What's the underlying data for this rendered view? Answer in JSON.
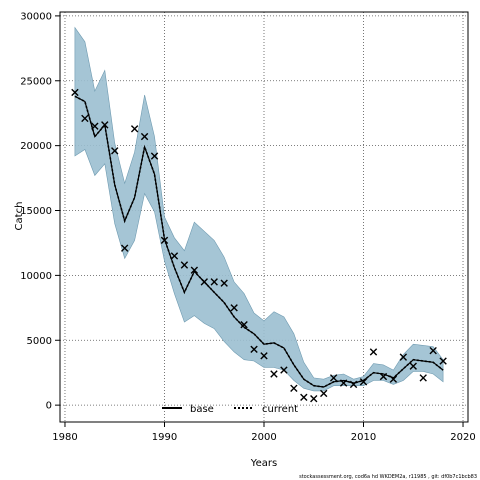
{
  "chart_data": {
    "type": "line",
    "xlabel": "Years",
    "ylabel": "Catch",
    "xlim": [
      1979.5,
      2020.5
    ],
    "ylim": [
      -1300,
      30300
    ],
    "xticks": [
      1980,
      1990,
      2000,
      2010,
      2020
    ],
    "yticks": [
      0,
      5000,
      10000,
      15000,
      20000,
      25000,
      30000
    ],
    "grid": true,
    "legend_position": "bottom-center",
    "years": [
      1981,
      1982,
      1983,
      1984,
      1985,
      1986,
      1987,
      1988,
      1989,
      1990,
      1991,
      1992,
      1993,
      1994,
      1995,
      1996,
      1997,
      1998,
      1999,
      2000,
      2001,
      2002,
      2003,
      2004,
      2005,
      2006,
      2007,
      2008,
      2009,
      2010,
      2011,
      2012,
      2013,
      2014,
      2015,
      2016,
      2017,
      2018
    ],
    "series": [
      {
        "name": "base",
        "color": "#000000",
        "style": "solid",
        "values": [
          23800,
          23400,
          20700,
          21600,
          17000,
          14200,
          16000,
          19900,
          17800,
          12800,
          10600,
          8700,
          10300,
          9500,
          8700,
          7900,
          6800,
          6000,
          5500,
          4700,
          4800,
          4400,
          3100,
          2000,
          1500,
          1400,
          1800,
          1900,
          1700,
          1900,
          2500,
          2400,
          2100,
          2800,
          3500,
          3400,
          3300,
          2700
        ],
        "band_upper": [
          29100,
          28000,
          24200,
          25800,
          20200,
          17100,
          19500,
          23900,
          20700,
          14500,
          12900,
          11900,
          14100,
          13400,
          12700,
          11400,
          9500,
          8600,
          7100,
          6500,
          7200,
          6800,
          5500,
          3300,
          2100,
          2000,
          2300,
          2400,
          2000,
          2200,
          3200,
          3100,
          2700,
          3900,
          4700,
          4600,
          4500,
          3500
        ],
        "band_lower": [
          19200,
          19700,
          17700,
          18600,
          14000,
          11300,
          12700,
          16300,
          14900,
          11100,
          8600,
          6400,
          6900,
          6300,
          5900,
          4900,
          4100,
          3500,
          3400,
          2900,
          2900,
          2700,
          1900,
          1300,
          1100,
          1100,
          1500,
          1500,
          1500,
          1500,
          1900,
          1900,
          1600,
          1900,
          2600,
          2600,
          2400,
          1800
        ]
      },
      {
        "name": "current",
        "color": "#000000",
        "style": "dotted",
        "values": [
          23800,
          23400,
          20700,
          21600,
          17000,
          14200,
          16000,
          19900,
          17800,
          12800,
          10600,
          8700,
          10300,
          9500,
          8700,
          7900,
          6800,
          6000,
          5500,
          4700,
          4800,
          4400,
          3100,
          2000,
          1500,
          1400,
          1800,
          1900,
          1700,
          1900,
          2500,
          2400,
          2100,
          2800,
          3500,
          3400,
          3300,
          2700
        ]
      },
      {
        "name": "observed",
        "marker": "x",
        "points": [
          [
            1981,
            24100
          ],
          [
            1982,
            22100
          ],
          [
            1983,
            21500
          ],
          [
            1984,
            21600
          ],
          [
            1985,
            19600
          ],
          [
            1986,
            12100
          ],
          [
            1987,
            21300
          ],
          [
            1988,
            20700
          ],
          [
            1989,
            19200
          ],
          [
            1990,
            12700
          ],
          [
            1991,
            11500
          ],
          [
            1992,
            10800
          ],
          [
            1993,
            10400
          ],
          [
            1994,
            9500
          ],
          [
            1995,
            9500
          ],
          [
            1996,
            9400
          ],
          [
            1997,
            7500
          ],
          [
            1998,
            6200
          ],
          [
            1999,
            4300
          ],
          [
            2000,
            3800
          ],
          [
            2001,
            2400
          ],
          [
            2002,
            2700
          ],
          [
            2003,
            1300
          ],
          [
            2004,
            600
          ],
          [
            2005,
            500
          ],
          [
            2006,
            900
          ],
          [
            2007,
            2100
          ],
          [
            2008,
            1700
          ],
          [
            2009,
            1600
          ],
          [
            2010,
            1800
          ],
          [
            2011,
            4100
          ],
          [
            2012,
            2200
          ],
          [
            2013,
            2000
          ],
          [
            2014,
            3700
          ],
          [
            2015,
            3000
          ],
          [
            2016,
            2100
          ],
          [
            2017,
            4200
          ],
          [
            2018,
            3400
          ]
        ]
      }
    ],
    "band_color": "#9bbfd0",
    "band_edge_color": "#6e9ab0"
  },
  "legend": {
    "base_label": "base",
    "current_label": "current"
  },
  "footer_text": "stockassessment.org, cod6a hd WKDEM2a, r11985 , git: df0b7c1bcb83"
}
